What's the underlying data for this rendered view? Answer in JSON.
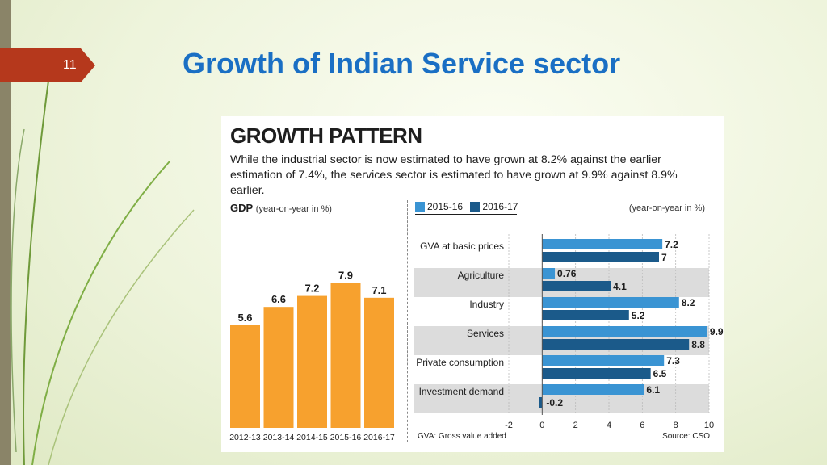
{
  "slide": {
    "number": "11",
    "title": "Growth of Indian Service sector"
  },
  "figure": {
    "title": "GROWTH PATTERN",
    "subtitle": "While the industrial sector is now estimated to have grown at 8.2% against the earlier estimation of 7.4%, the services sector is estimated to have grown at 9.9% against 8.9% earlier.",
    "left_title": "GDP",
    "left_unit": "(year-on-year in %)",
    "right_unit": "(year-on-year in %)",
    "footnote": "GVA: Gross value added",
    "source": "Source: CSO"
  },
  "colors": {
    "gdp_bar": "#f7a12e",
    "s2015": "#3a94d3",
    "s2016": "#1b5a8a",
    "band": "#dcdcdc",
    "tab": "#b5381c",
    "title": "#1a6fc4"
  },
  "chart_data": [
    {
      "type": "bar",
      "title": "GDP",
      "ylabel": "(year-on-year in %)",
      "categories": [
        "2012-13",
        "2013-14",
        "2014-15",
        "2015-16",
        "2016-17"
      ],
      "values": [
        5.6,
        6.6,
        7.2,
        7.9,
        7.1
      ],
      "value_labels": [
        "5.6",
        "6.6",
        "7.2",
        "7.9",
        "7.1"
      ]
    },
    {
      "type": "bar",
      "orientation": "horizontal",
      "categories": [
        "GVA at basic prices",
        "Agriculture",
        "Industry",
        "Services",
        "Private consumption",
        "Investment demand"
      ],
      "series": [
        {
          "name": "2015-16",
          "values": [
            7.2,
            0.76,
            8.2,
            9.9,
            7.3,
            6.1
          ],
          "labels": [
            "7.2",
            "0.76",
            "8.2",
            "9.9",
            "7.3",
            "6.1"
          ]
        },
        {
          "name": "2016-17",
          "values": [
            7,
            4.1,
            5.2,
            8.8,
            6.5,
            -0.2
          ],
          "labels": [
            "7",
            "4.1",
            "5.2",
            "8.8",
            "6.5",
            "-0.2"
          ]
        }
      ],
      "xlim": [
        -2,
        10
      ],
      "xticks": [
        "-2",
        "0",
        "2",
        "4",
        "6",
        "8",
        "10"
      ],
      "grid": true
    }
  ]
}
